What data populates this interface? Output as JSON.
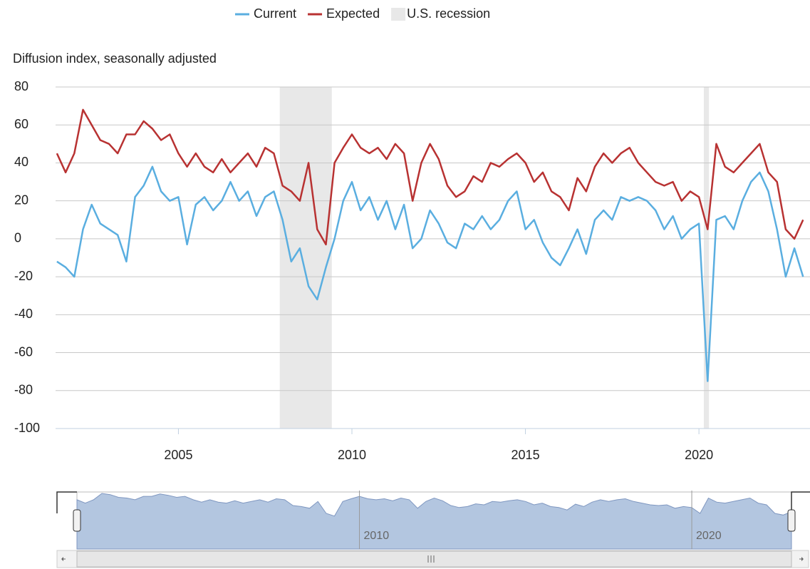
{
  "chart_data": {
    "type": "line",
    "y_axis_label": "Diffusion index, seasonally adjusted",
    "x": [
      2001.5,
      2001.75,
      2002,
      2002.25,
      2002.5,
      2002.75,
      2003,
      2003.25,
      2003.5,
      2003.75,
      2004,
      2004.25,
      2004.5,
      2004.75,
      2005,
      2005.25,
      2005.5,
      2005.75,
      2006,
      2006.25,
      2006.5,
      2006.75,
      2007,
      2007.25,
      2007.5,
      2007.75,
      2008,
      2008.25,
      2008.5,
      2008.75,
      2009,
      2009.25,
      2009.5,
      2009.75,
      2010,
      2010.25,
      2010.5,
      2010.75,
      2011,
      2011.25,
      2011.5,
      2011.75,
      2012,
      2012.25,
      2012.5,
      2012.75,
      2013,
      2013.25,
      2013.5,
      2013.75,
      2014,
      2014.25,
      2014.5,
      2014.75,
      2015,
      2015.25,
      2015.5,
      2015.75,
      2016,
      2016.25,
      2016.5,
      2016.75,
      2017,
      2017.25,
      2017.5,
      2017.75,
      2018,
      2018.25,
      2018.5,
      2018.75,
      2019,
      2019.25,
      2019.5,
      2019.75,
      2020,
      2020.25,
      2020.5,
      2020.75,
      2021,
      2021.25,
      2021.5,
      2021.75,
      2022,
      2022.25,
      2022.5,
      2022.75,
      2023
    ],
    "series": [
      {
        "name": "Current",
        "color": "#5aaee0",
        "values": [
          -12,
          -15,
          -20,
          5,
          18,
          8,
          5,
          2,
          -12,
          22,
          28,
          38,
          25,
          20,
          22,
          -3,
          18,
          22,
          15,
          20,
          30,
          20,
          25,
          12,
          22,
          25,
          10,
          -12,
          -5,
          -25,
          -32,
          -15,
          0,
          20,
          30,
          15,
          22,
          10,
          20,
          5,
          18,
          -5,
          0,
          15,
          8,
          -2,
          -5,
          8,
          5,
          12,
          5,
          10,
          20,
          25,
          5,
          10,
          -2,
          -10,
          -14,
          -5,
          5,
          -8,
          10,
          15,
          10,
          22,
          20,
          22,
          20,
          15,
          5,
          12,
          0,
          5,
          8,
          -75,
          10,
          12,
          5,
          20,
          30,
          35,
          25,
          5,
          -20,
          -5,
          -20
        ]
      },
      {
        "name": "Expected",
        "color": "#b83232",
        "values": [
          45,
          35,
          45,
          68,
          60,
          52,
          50,
          45,
          55,
          55,
          62,
          58,
          52,
          55,
          45,
          38,
          45,
          38,
          35,
          42,
          35,
          40,
          45,
          38,
          48,
          45,
          28,
          25,
          20,
          40,
          5,
          -3,
          40,
          48,
          55,
          48,
          45,
          48,
          42,
          50,
          45,
          20,
          40,
          50,
          42,
          28,
          22,
          25,
          33,
          30,
          40,
          38,
          42,
          45,
          40,
          30,
          35,
          25,
          22,
          15,
          32,
          25,
          38,
          45,
          40,
          45,
          48,
          40,
          35,
          30,
          28,
          30,
          20,
          25,
          22,
          5,
          50,
          38,
          35,
          40,
          45,
          50,
          35,
          30,
          5,
          0,
          10
        ]
      }
    ],
    "recessions": {
      "name": "U.S. recession",
      "color": "#e8e8e8",
      "periods": [
        [
          2007.92,
          2009.42
        ],
        [
          2020.14,
          2020.29
        ]
      ]
    },
    "xlim": [
      2001.46,
      2023.2
    ],
    "xticks": [
      2005,
      2010,
      2015,
      2020
    ],
    "ylim": [
      -100,
      80
    ],
    "yticks": [
      80,
      60,
      40,
      20,
      0,
      -20,
      -40,
      -60,
      -80,
      -100
    ],
    "grid": true,
    "navigator_ticks": [
      2010,
      2020
    ]
  }
}
